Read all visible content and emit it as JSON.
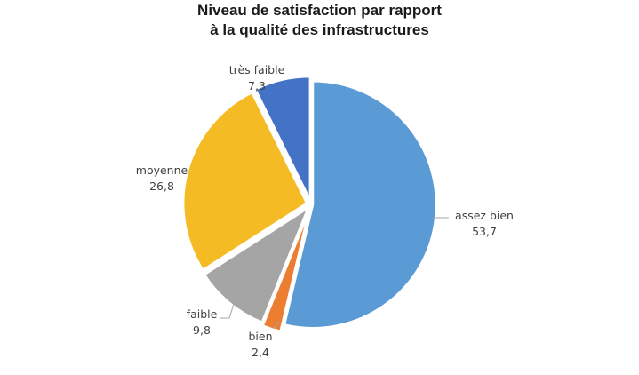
{
  "chart_data": {
    "type": "pie",
    "title": [
      "Niveau de satisfaction par rapport",
      "à la qualité des infrastructures"
    ],
    "legend": "none",
    "slices": [
      {
        "label": "assez bien",
        "value": 53.7,
        "display": "53,7",
        "color": "#5B9BD5"
      },
      {
        "label": "bien",
        "value": 2.4,
        "display": "2,4",
        "color": "#ED7D31"
      },
      {
        "label": "faible",
        "value": 9.8,
        "display": "9,8",
        "color": "#A5A5A5"
      },
      {
        "label": "moyenne",
        "value": 26.8,
        "display": "26,8",
        "color": "#F4BB24"
      },
      {
        "label": "très faible",
        "value": 7.3,
        "display": "7,3",
        "color": "#4472C4"
      }
    ]
  }
}
